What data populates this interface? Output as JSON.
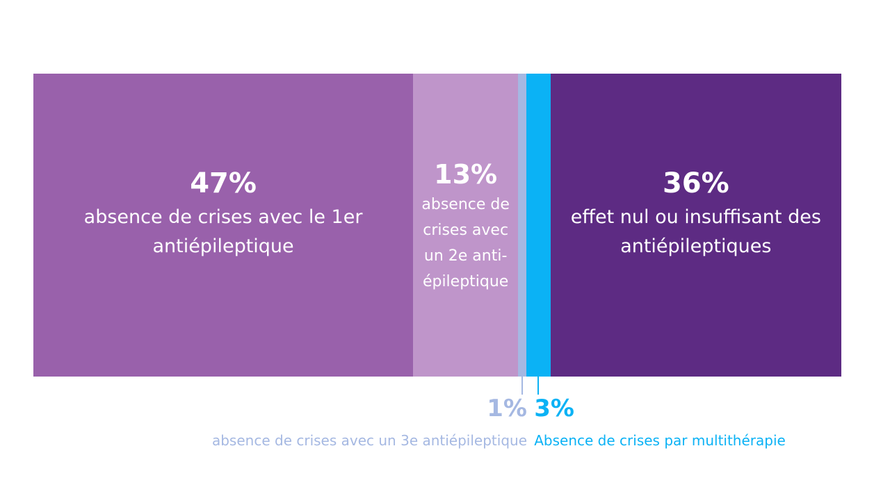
{
  "chart_data": {
    "type": "bar",
    "orientation": "horizontal-stacked-100",
    "title": "",
    "xlabel": "",
    "ylabel": "",
    "segments": [
      {
        "value": 47,
        "label": "47%",
        "description": "absence de crises avec le 1er antiépileptique",
        "color": "#9961AB",
        "label_position": "inside"
      },
      {
        "value": 13,
        "label": "13%",
        "description": "absence de crises avec un 2e anti-épileptique",
        "color": "#BF95CA",
        "label_position": "inside"
      },
      {
        "value": 1,
        "label": "1%",
        "description": "absence de crises avec un 3e antiépileptique",
        "color": "#A5B8E2",
        "label_position": "below-left"
      },
      {
        "value": 3,
        "label": "3%",
        "description": "Absence de crises par multithérapie",
        "color": "#0BB2F5",
        "label_position": "below-right"
      },
      {
        "value": 36,
        "label": "36%",
        "description": "effet nul ou insuffisant des antiépileptiques",
        "color": "#5D2B83",
        "label_position": "inside"
      }
    ]
  }
}
